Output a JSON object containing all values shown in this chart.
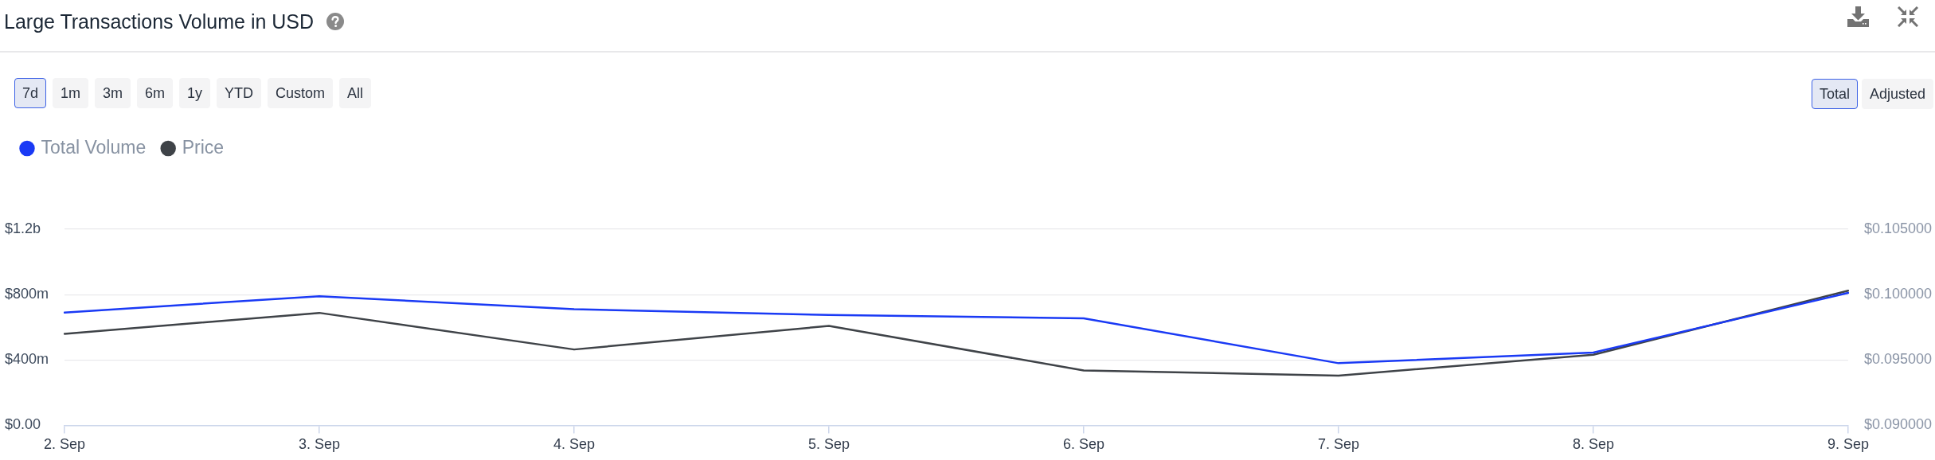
{
  "chart_data": {
    "type": "line",
    "title": "Large Transactions Volume in USD",
    "annotations": [
      "7d",
      "1m",
      "3m",
      "6m",
      "1y",
      "YTD",
      "Custom",
      "All",
      "Total",
      "Adjusted"
    ],
    "categories": [
      "2. Sep",
      "3. Sep",
      "4. Sep",
      "5. Sep",
      "6. Sep",
      "7. Sep",
      "8. Sep",
      "9. Sep"
    ],
    "series": [
      {
        "name": "Total Volume",
        "color": "#1a3af5",
        "values": [
          690000000,
          790000000,
          710000000,
          675000000,
          655000000,
          380000000,
          445000000,
          810000000
        ]
      },
      {
        "name": "Price",
        "color": "#3f4348",
        "axis": "y2",
        "values": [
          0.097,
          0.0986,
          0.0958,
          0.0976,
          0.0942,
          0.0938,
          0.0954,
          0.1003
        ]
      }
    ],
    "ylim": [
      0,
      1200000000
    ],
    "yticks": [
      {
        "value": 0,
        "label": "$0.00"
      },
      {
        "value": 400000000,
        "label": "$400m"
      },
      {
        "value": 800000000,
        "label": "$800m"
      },
      {
        "value": 1200000000,
        "label": "$1.2b"
      }
    ],
    "y2lim": [
      0.09,
      0.105
    ],
    "y2ticks": [
      {
        "value": 0.09,
        "label": "$0.090000"
      },
      {
        "value": 0.095,
        "label": "$0.095000"
      },
      {
        "value": 0.1,
        "label": "$0.100000"
      },
      {
        "value": 0.105,
        "label": "$0.105000"
      }
    ],
    "grid": "y",
    "legend": "top left",
    "marker": "none"
  }
}
